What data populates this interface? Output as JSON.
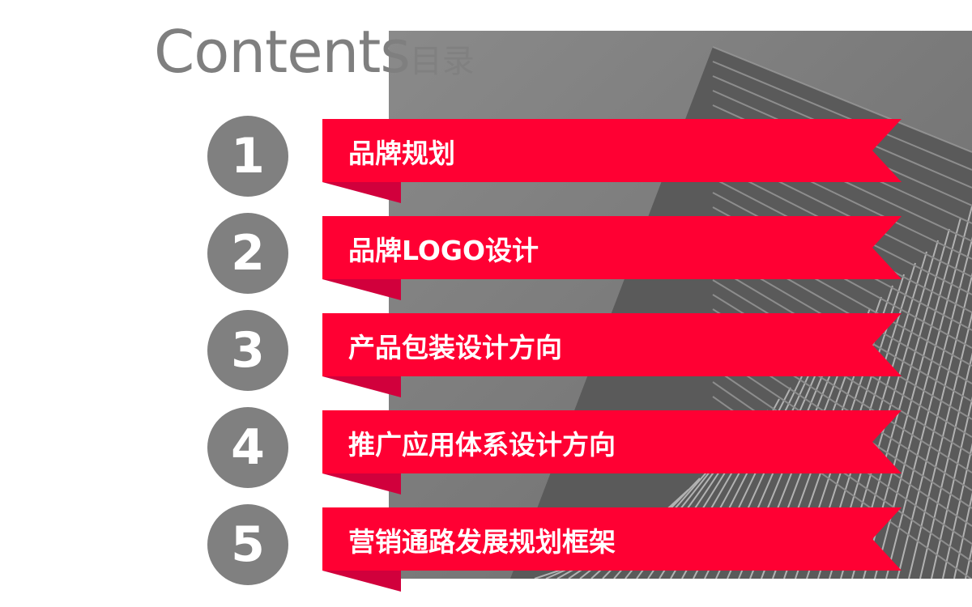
{
  "title": {
    "en": "Contents",
    "cn": "目录"
  },
  "colors": {
    "ribbon": "#ff0033",
    "ribbon_fold": "#d1003c",
    "circle": "#808080",
    "title": "#7f7f7f"
  },
  "items": [
    {
      "number": "1",
      "label": "品牌规划"
    },
    {
      "number": "2",
      "label": "品牌LOGO设计"
    },
    {
      "number": "3",
      "label": "产品包装设计方向"
    },
    {
      "number": "4",
      "label": "推广应用体系设计方向"
    },
    {
      "number": "5",
      "label": "营销通路发展规划框架"
    }
  ]
}
